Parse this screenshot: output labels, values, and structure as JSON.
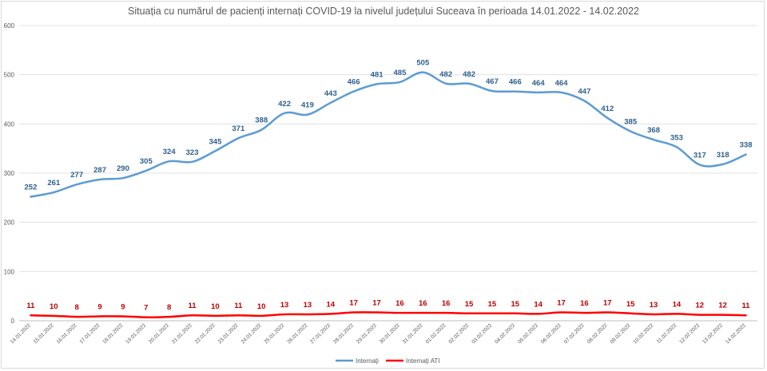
{
  "chart_data": {
    "type": "line",
    "title": "Situația cu numărul de pacienți internați COVID-19 la nivelul județului Suceava în perioada 14.01.2022 - 14.02.2022",
    "xlabel": "",
    "ylabel": "",
    "ylim": [
      0,
      600
    ],
    "yticks": [
      0,
      100,
      200,
      300,
      400,
      500,
      600
    ],
    "grid": true,
    "legend_position": "bottom",
    "categories": [
      "14.01.2022",
      "15.01.2022",
      "16.01.2022",
      "17.01.2022",
      "18.01.2022",
      "19.01.2022",
      "20.01.2022",
      "21.01.2022",
      "22.01.2022",
      "23.01.2022",
      "24.01.2022",
      "25.01.2022",
      "26.01.2022",
      "27.01.2022",
      "28.01.2022",
      "29.01.2022",
      "30.01.2022",
      "31.01.2022",
      "01.02.2022",
      "02.02.2022",
      "03.02.2022",
      "04.02.2022",
      "05.02.2022",
      "06.02.2022",
      "07.02.2022",
      "08.02.2022",
      "09.02.2022",
      "10.02.2022",
      "11.02.2022",
      "12.02.2022",
      "13.02.2022",
      "14.02.2022"
    ],
    "series": [
      {
        "name": "Internați",
        "color": "#5b9bd5",
        "values": [
          252,
          261,
          277,
          287,
          290,
          305,
          324,
          323,
          345,
          371,
          388,
          422,
          419,
          443,
          466,
          481,
          485,
          505,
          482,
          482,
          467,
          466,
          464,
          464,
          447,
          412,
          385,
          368,
          353,
          317,
          318,
          338
        ]
      },
      {
        "name": "Internați ATI",
        "color": "#ff0000",
        "values": [
          11,
          10,
          8,
          9,
          9,
          7,
          8,
          11,
          10,
          11,
          10,
          13,
          13,
          14,
          17,
          17,
          16,
          16,
          16,
          15,
          15,
          15,
          14,
          17,
          16,
          17,
          15,
          13,
          14,
          12,
          12,
          11
        ]
      }
    ]
  }
}
